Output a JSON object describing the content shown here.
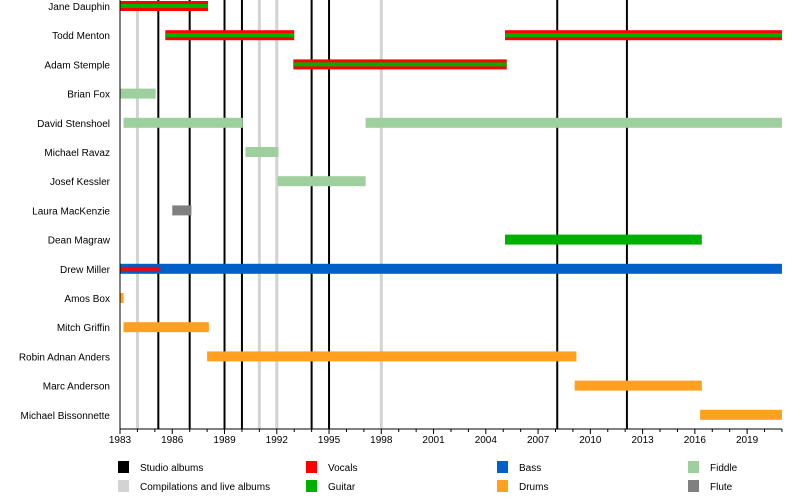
{
  "chart_data": {
    "type": "timeline",
    "title": "",
    "xlim": [
      1983,
      2021
    ],
    "x_ticks": [
      1983,
      1986,
      1989,
      1992,
      1995,
      1998,
      2001,
      2004,
      2007,
      2010,
      2013,
      2016,
      2019
    ],
    "studio_albums": [
      1985.2,
      1987.0,
      1989.0,
      1990.0,
      1994.0,
      1995.0,
      2008.1,
      2012.1
    ],
    "compilations": [
      1984.0,
      1991.0,
      1992.0,
      1998.0
    ],
    "members": [
      {
        "name": "Jane Dauphin",
        "bars": [
          {
            "role": "vocals_guitar",
            "from": 1983,
            "to": 1988.05
          }
        ]
      },
      {
        "name": "Todd Menton",
        "bars": [
          {
            "role": "vocals_guitar",
            "from": 1985.6,
            "to": 1993.0
          },
          {
            "role": "vocals_guitar",
            "from": 2005.1,
            "to": 2021
          }
        ]
      },
      {
        "name": "Adam Stemple",
        "bars": [
          {
            "role": "vocals_guitar",
            "from": 1992.95,
            "to": 2005.2
          }
        ]
      },
      {
        "name": "Brian Fox",
        "bars": [
          {
            "role": "fiddle",
            "from": 1983,
            "to": 1985.05
          }
        ]
      },
      {
        "name": "David Stenshoel",
        "bars": [
          {
            "role": "fiddle",
            "from": 1983.2,
            "to": 1990.05
          },
          {
            "role": "fiddle",
            "from": 1997.1,
            "to": 2021
          }
        ]
      },
      {
        "name": "Michael Ravaz",
        "bars": [
          {
            "role": "fiddle",
            "from": 1990.2,
            "to": 1992.1
          }
        ]
      },
      {
        "name": "Josef Kessler",
        "bars": [
          {
            "role": "fiddle",
            "from": 1992.05,
            "to": 1997.1
          }
        ]
      },
      {
        "name": "Laura MacKenzie",
        "bars": [
          {
            "role": "flute",
            "from": 1986.0,
            "to": 1987.1
          }
        ]
      },
      {
        "name": "Dean Magraw",
        "bars": [
          {
            "role": "guitar",
            "from": 2005.1,
            "to": 2016.4
          }
        ]
      },
      {
        "name": "Drew Miller",
        "bars": [
          {
            "role": "bass",
            "from": 1983,
            "to": 2021
          },
          {
            "role": "vocals_thin",
            "from": 1983,
            "to": 1985.3
          }
        ]
      },
      {
        "name": "Amos Box",
        "bars": [
          {
            "role": "drums",
            "from": 1983,
            "to": 1983.2
          }
        ]
      },
      {
        "name": "Mitch Griffin",
        "bars": [
          {
            "role": "drums",
            "from": 1983.2,
            "to": 1988.1
          }
        ]
      },
      {
        "name": "Robin Adnan Anders",
        "bars": [
          {
            "role": "drums",
            "from": 1988.0,
            "to": 2009.2
          }
        ]
      },
      {
        "name": "Marc Anderson",
        "bars": [
          {
            "role": "drums",
            "from": 2009.1,
            "to": 2016.4
          }
        ]
      },
      {
        "name": "Michael Bissonnette",
        "bars": [
          {
            "role": "drums",
            "from": 2016.3,
            "to": 2021
          }
        ]
      }
    ],
    "legend": [
      {
        "label": "Studio albums",
        "color": "#000000"
      },
      {
        "label": "Compilations and live albums",
        "color": "#d3d3d3"
      },
      {
        "label": "Vocals",
        "color": "#ff0000"
      },
      {
        "label": "Guitar",
        "color": "#00b000"
      },
      {
        "label": "Bass",
        "color": "#0060c8"
      },
      {
        "label": "Drums",
        "color": "#ffa020"
      },
      {
        "label": "Fiddle",
        "color": "#9fcf9f"
      },
      {
        "label": "Flute",
        "color": "#808080"
      }
    ],
    "legend_placement": "bottom"
  },
  "colors": {
    "vocals": "#ff0000",
    "guitar": "#00b000",
    "bass": "#0060c8",
    "drums": "#ffa020",
    "fiddle": "#9fcf9f",
    "flute": "#808080",
    "studio": "#000000",
    "compilation": "#d3d3d3"
  }
}
